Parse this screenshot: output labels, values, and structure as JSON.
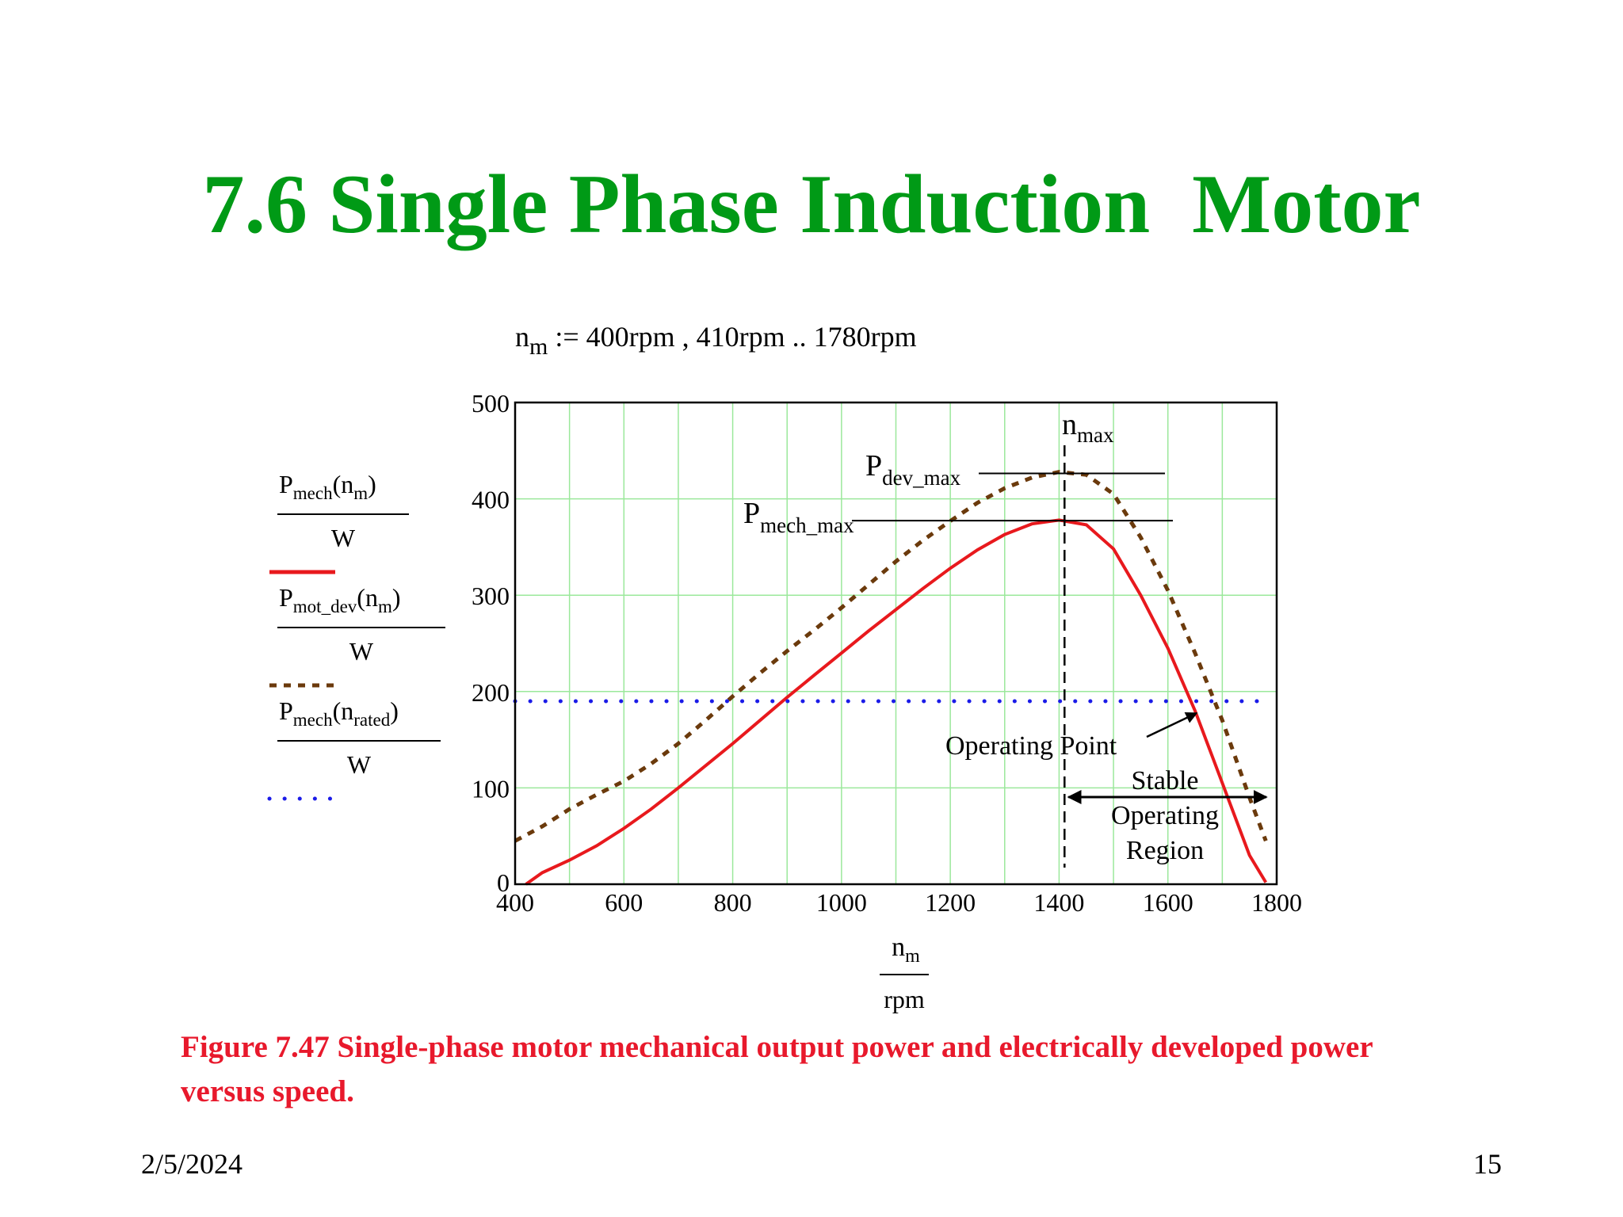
{
  "slide": {
    "title": "7.6 Single Phase Induction  Motor",
    "range_definition": {
      "var": "n",
      "sub": "m",
      "rest": " := 400rpm , 410rpm .. 1780rpm"
    },
    "caption": "Figure 7.47 Single-phase motor mechanical output power and electrically developed power versus speed.",
    "footer_date": "2/5/2024",
    "footer_page": "15"
  },
  "chart_data": {
    "type": "line",
    "x_range": [
      400,
      1800
    ],
    "y_range": [
      0,
      500
    ],
    "x_ticks": [
      "400",
      "600",
      "800",
      "1000",
      "1200",
      "1400",
      "1600",
      "1800"
    ],
    "y_ticks": [
      "0",
      "100",
      "200",
      "300",
      "400",
      "500"
    ],
    "grid": true,
    "xlabel": {
      "num_main": "n",
      "num_sub": "m",
      "den": "rpm"
    },
    "legend": [
      {
        "num_main": "P",
        "num_sub": "mech",
        "arg_main": "n",
        "arg_sub": "m",
        "den": "W",
        "color": "#e8191d",
        "dash": "solid"
      },
      {
        "num_main": "P",
        "num_sub": "mot_dev",
        "arg_main": "n",
        "arg_sub": "m",
        "den": "W",
        "color": "#6b3a0c",
        "dash": "dash"
      },
      {
        "num_main": "P",
        "num_sub": "mech",
        "arg_main": "n",
        "arg_sub": "rated",
        "den": "W",
        "color": "#1b1be8",
        "dash": "dot"
      }
    ],
    "series": [
      {
        "color": "#e8191d",
        "style": "solid",
        "x": [
          420,
          450,
          500,
          550,
          600,
          650,
          700,
          750,
          800,
          850,
          900,
          950,
          1000,
          1050,
          1100,
          1150,
          1200,
          1250,
          1300,
          1350,
          1400,
          1450,
          1500,
          1550,
          1600,
          1650,
          1700,
          1750,
          1780
        ],
        "y": [
          0,
          12,
          25,
          40,
          58,
          78,
          100,
          123,
          146,
          170,
          194,
          217,
          240,
          263,
          285,
          307,
          328,
          347,
          363,
          374,
          378,
          373,
          348,
          300,
          245,
          180,
          105,
          30,
          2
        ]
      },
      {
        "color": "#6b3a0c",
        "style": "dash",
        "x": [
          400,
          450,
          500,
          550,
          600,
          650,
          700,
          750,
          800,
          850,
          900,
          950,
          1000,
          1050,
          1100,
          1150,
          1200,
          1250,
          1300,
          1350,
          1400,
          1450,
          1500,
          1550,
          1600,
          1650,
          1700,
          1750,
          1780
        ],
        "y": [
          45,
          60,
          78,
          93,
          107,
          125,
          146,
          170,
          195,
          219,
          242,
          264,
          287,
          311,
          335,
          357,
          377,
          396,
          411,
          422,
          428,
          425,
          405,
          360,
          305,
          240,
          170,
          90,
          45
        ]
      },
      {
        "color": "#1b1be8",
        "style": "dot",
        "x": [
          400,
          1780
        ],
        "y": [
          190,
          190
        ]
      }
    ],
    "annotations": {
      "n_max": {
        "main": "n",
        "sub": "max",
        "x": 1410
      },
      "p_dev_max": {
        "main": "P",
        "sub": "dev_max",
        "y": 428
      },
      "p_mech_max": {
        "main": "P",
        "sub": "mech_max",
        "y": 379
      },
      "operating_point": "Operating Point",
      "stable_region": [
        "Stable",
        "Operating",
        "Region"
      ]
    }
  }
}
